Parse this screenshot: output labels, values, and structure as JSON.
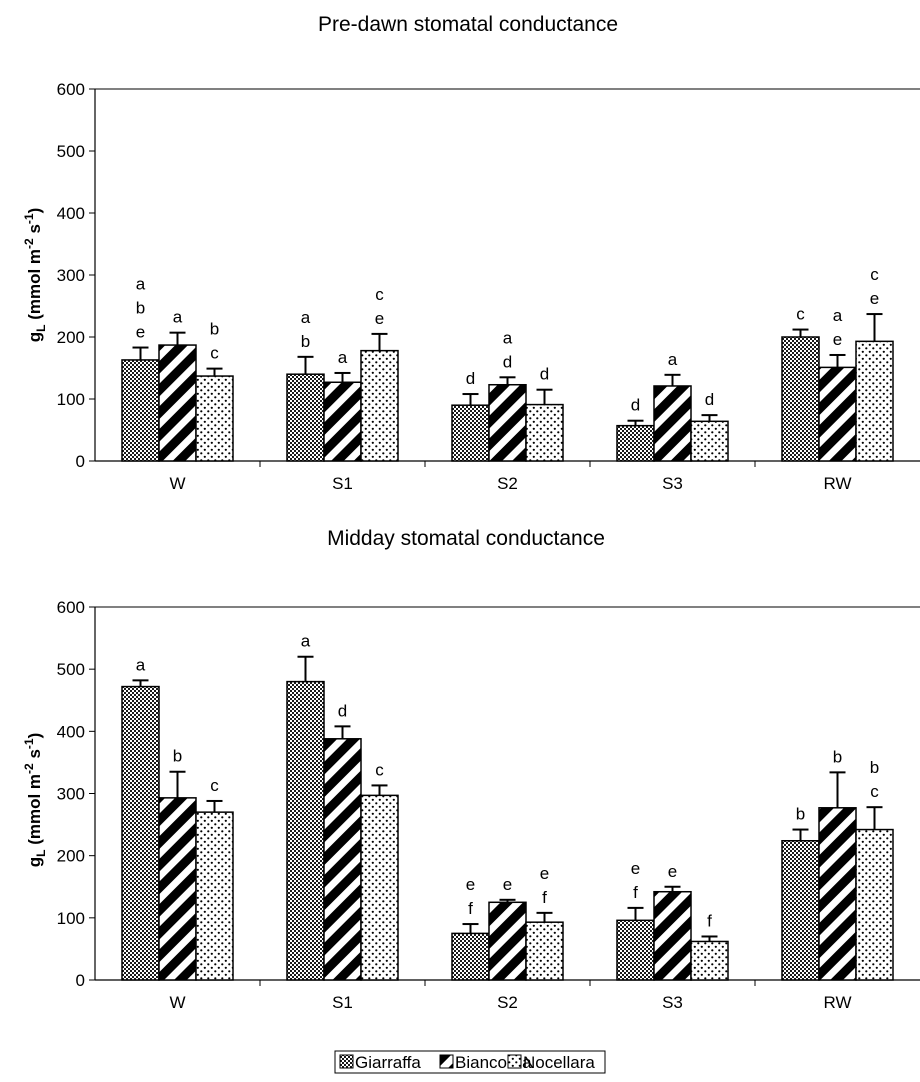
{
  "legend": {
    "items": [
      {
        "name": "Giarraffa",
        "pattern": "checker"
      },
      {
        "name": "Biancolilla",
        "pattern": "stripes"
      },
      {
        "name": "Nocellara",
        "pattern": "dots"
      }
    ]
  },
  "chart_data": [
    {
      "type": "bar",
      "title": "Pre-dawn stomatal conductance",
      "ylabel_main": "g",
      "ylabel_sub": "L",
      "ylabel_unit_prefix": " (mmol m",
      "ylabel_exp1": "-2",
      "ylabel_mid": " s",
      "ylabel_exp2": "-1",
      "ylabel_suffix": ")",
      "ylim": [
        0,
        600
      ],
      "yticks": [
        "0",
        "100",
        "200",
        "300",
        "400",
        "500",
        "600"
      ],
      "categories": [
        "W",
        "S1",
        "S2",
        "S3",
        "RW"
      ],
      "series": [
        {
          "name": "Giarraffa",
          "values": [
            163,
            140,
            90,
            57,
            200
          ],
          "errors": [
            20,
            28,
            18,
            8,
            12
          ],
          "letters": [
            [
              "a",
              "b",
              "e"
            ],
            [
              "a",
              "b"
            ],
            [
              "d"
            ],
            [
              "d"
            ],
            [
              "c"
            ]
          ]
        },
        {
          "name": "Biancolilla",
          "values": [
            187,
            127,
            123,
            121,
            151
          ],
          "errors": [
            20,
            15,
            12,
            18,
            20
          ],
          "letters": [
            [
              "a"
            ],
            [
              "a"
            ],
            [
              "a",
              "d"
            ],
            [
              "a"
            ],
            [
              "a",
              "e"
            ]
          ]
        },
        {
          "name": "Nocellara",
          "values": [
            137,
            178,
            91,
            64,
            193
          ],
          "errors": [
            12,
            27,
            24,
            10,
            44
          ],
          "letters": [
            [
              "b",
              "c"
            ],
            [
              "c",
              "e"
            ],
            [
              "d"
            ],
            [
              "d"
            ],
            [
              "c",
              "e"
            ]
          ]
        }
      ]
    },
    {
      "type": "bar",
      "title": "Midday stomatal conductance",
      "ylabel_main": "g",
      "ylabel_sub": "L",
      "ylabel_unit_prefix": " (mmol m",
      "ylabel_exp1": "-2",
      "ylabel_mid": " s",
      "ylabel_exp2": "-1",
      "ylabel_suffix": ")",
      "ylim": [
        0,
        600
      ],
      "yticks": [
        "0",
        "100",
        "200",
        "300",
        "400",
        "500",
        "600"
      ],
      "categories": [
        "W",
        "S1",
        "S2",
        "S3",
        "RW"
      ],
      "series": [
        {
          "name": "Giarraffa",
          "values": [
            472,
            480,
            75,
            96,
            224
          ],
          "errors": [
            10,
            40,
            15,
            20,
            18
          ],
          "letters": [
            [
              "a"
            ],
            [
              "a"
            ],
            [
              "e",
              "f"
            ],
            [
              "e",
              "f"
            ],
            [
              "b"
            ]
          ]
        },
        {
          "name": "Biancolilla",
          "values": [
            293,
            388,
            125,
            142,
            277
          ],
          "errors": [
            42,
            20,
            4,
            8,
            57
          ],
          "letters": [
            [
              "b"
            ],
            [
              "d"
            ],
            [
              "e"
            ],
            [
              "e"
            ],
            [
              "b"
            ]
          ]
        },
        {
          "name": "Nocellara",
          "values": [
            270,
            297,
            93,
            62,
            242
          ],
          "errors": [
            18,
            16,
            15,
            8,
            36
          ],
          "letters": [
            [
              "c"
            ],
            [
              "c"
            ],
            [
              "e",
              "f"
            ],
            [
              "f"
            ],
            [
              "b",
              "c"
            ]
          ]
        }
      ]
    }
  ]
}
